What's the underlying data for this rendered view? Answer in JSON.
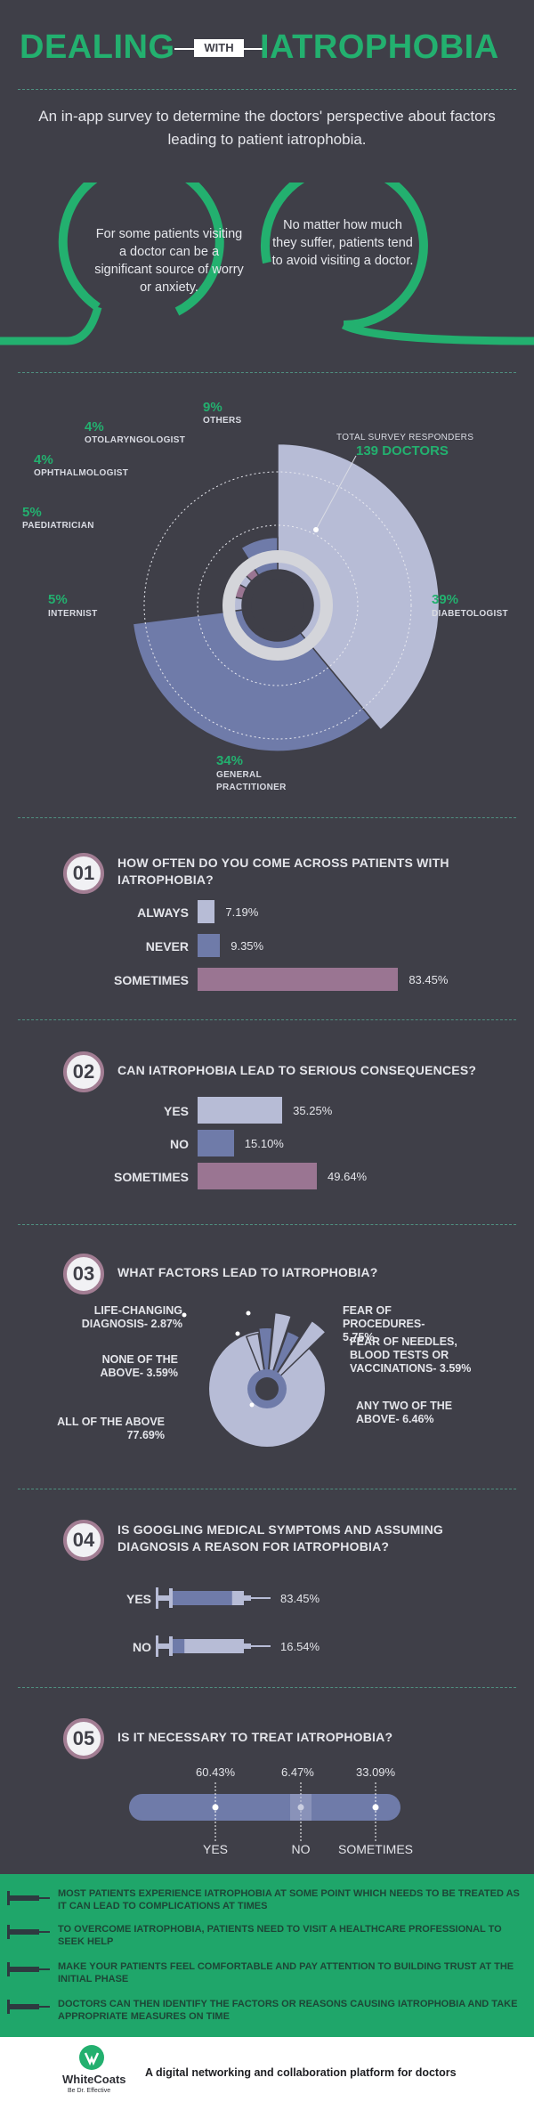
{
  "header": {
    "title_left": "DEALING",
    "title_with": "WITH",
    "title_right": "IATROPHOBIA"
  },
  "intro": "An in-app survey to determine the doctors' perspective about factors leading to patient iatrophobia.",
  "bubbles": [
    {
      "text": "For some patients visiting a doctor can be a significant source of worry or anxiety."
    },
    {
      "text": "No matter how much they suffer, patients tend to avoid visiting a doctor."
    }
  ],
  "survey": {
    "responders_label": "TOTAL SURVEY RESPONDERS",
    "responders_value": "139 DOCTORS"
  },
  "chart_data": [
    {
      "type": "pie",
      "title": "TOTAL SURVEY RESPONDERS 139 DOCTORS",
      "categories": [
        "DIABETOLOGIST",
        "GENERAL PRACTITIONER",
        "INTERNIST",
        "PAEDIATRICIAN",
        "OPHTHALMOLOGIST",
        "OTOLARYNGOLOGIST",
        "OTHERS"
      ],
      "values": [
        39,
        34,
        5,
        5,
        4,
        4,
        9
      ],
      "labels": [
        "39%",
        "34%",
        "5%",
        "5%",
        "4%",
        "4%",
        "9%"
      ],
      "colors": [
        "#b7bcd6",
        "#6f7ba9",
        "#b7bcd6",
        "#9a7592",
        "#b7bcd6",
        "#9a7592",
        "#6f7ba9"
      ]
    },
    {
      "type": "bar",
      "number": "01",
      "title": "HOW OFTEN DO YOU COME ACROSS PATIENTS WITH IATROPHOBIA?",
      "categories": [
        "ALWAYS",
        "NEVER",
        "SOMETIMES"
      ],
      "values": [
        7.19,
        9.35,
        83.45
      ],
      "labels": [
        "7.19%",
        "9.35%",
        "83.45%"
      ],
      "colors": [
        "#b7bcd6",
        "#6f7ba9",
        "#9a7592"
      ]
    },
    {
      "type": "bar",
      "number": "02",
      "title": "CAN IATROPHOBIA LEAD TO SERIOUS CONSEQUENCES?",
      "categories": [
        "YES",
        "NO",
        "SOMETIMES"
      ],
      "values": [
        35.25,
        15.1,
        49.64
      ],
      "labels": [
        "35.25%",
        "15.10%",
        "49.64%"
      ],
      "colors": [
        "#b7bcd6",
        "#6f7ba9",
        "#9a7592"
      ]
    },
    {
      "type": "pie",
      "number": "03",
      "title": "WHAT FACTORS LEAD TO IATROPHOBIA?",
      "categories": [
        "ALL OF THE ABOVE",
        "LIFE-CHANGING DIAGNOSIS",
        "NONE OF THE ABOVE",
        "FEAR OF PROCEDURES",
        "FEAR OF NEEDLES, BLOOD TESTS OR VACCINATIONS",
        "ANY TWO OF THE ABOVE"
      ],
      "values": [
        77.69,
        2.87,
        3.59,
        5.75,
        3.59,
        6.46
      ],
      "labels": [
        "ALL OF THE ABOVE 77.69%",
        "LIFE-CHANGING DIAGNOSIS- 2.87%",
        "NONE OF THE ABOVE- 3.59%",
        "FEAR OF PROCEDURES- 5.75%",
        "FEAR OF NEEDLES, BLOOD TESTS OR VACCINATIONS- 3.59%",
        "ANY TWO OF THE ABOVE- 6.46%"
      ]
    },
    {
      "type": "bar",
      "number": "04",
      "title": "IS GOOGLING MEDICAL SYMPTOMS AND ASSUMING DIAGNOSIS A REASON FOR IATROPHOBIA?",
      "categories": [
        "YES",
        "NO"
      ],
      "values": [
        83.45,
        16.54
      ],
      "labels": [
        "83.45%",
        "16.54%"
      ]
    },
    {
      "type": "bar",
      "number": "05",
      "title": "IS IT NECESSARY TO TREAT IATROPHOBIA?",
      "categories": [
        "YES",
        "NO",
        "SOMETIMES"
      ],
      "values": [
        60.43,
        6.47,
        33.09
      ],
      "labels": [
        "60.43%",
        "6.47%",
        "33.09%"
      ]
    }
  ],
  "footer": {
    "tips": [
      "MOST PATIENTS EXPERIENCE IATROPHOBIA AT SOME POINT WHICH NEEDS TO BE TREATED AS IT CAN LEAD TO COMPLICATIONS AT TIMES",
      "TO OVERCOME IATROPHOBIA, PATIENTS NEED TO VISIT A HEALTHCARE PROFESSIONAL TO SEEK HELP",
      "MAKE YOUR PATIENTS FEEL COMFORTABLE AND PAY ATTENTION TO BUILDING TRUST AT THE INITIAL PHASE",
      "DOCTORS CAN THEN IDENTIFY THE FACTORS OR REASONS CAUSING IATROPHOBIA AND TAKE APPROPRIATE MEASURES ON TIME"
    ]
  },
  "brand": {
    "name": "WhiteCoats",
    "tagline": "Be Dr. Effective",
    "description": "A digital networking and collaboration platform for doctors",
    "logo_icon": "whitecoats-logo-icon"
  },
  "colors": {
    "green": "#23b06f",
    "bg": "#3f3f48",
    "light": "#b7bcd6",
    "mid": "#6f7ba9",
    "mauve": "#9a7592"
  }
}
